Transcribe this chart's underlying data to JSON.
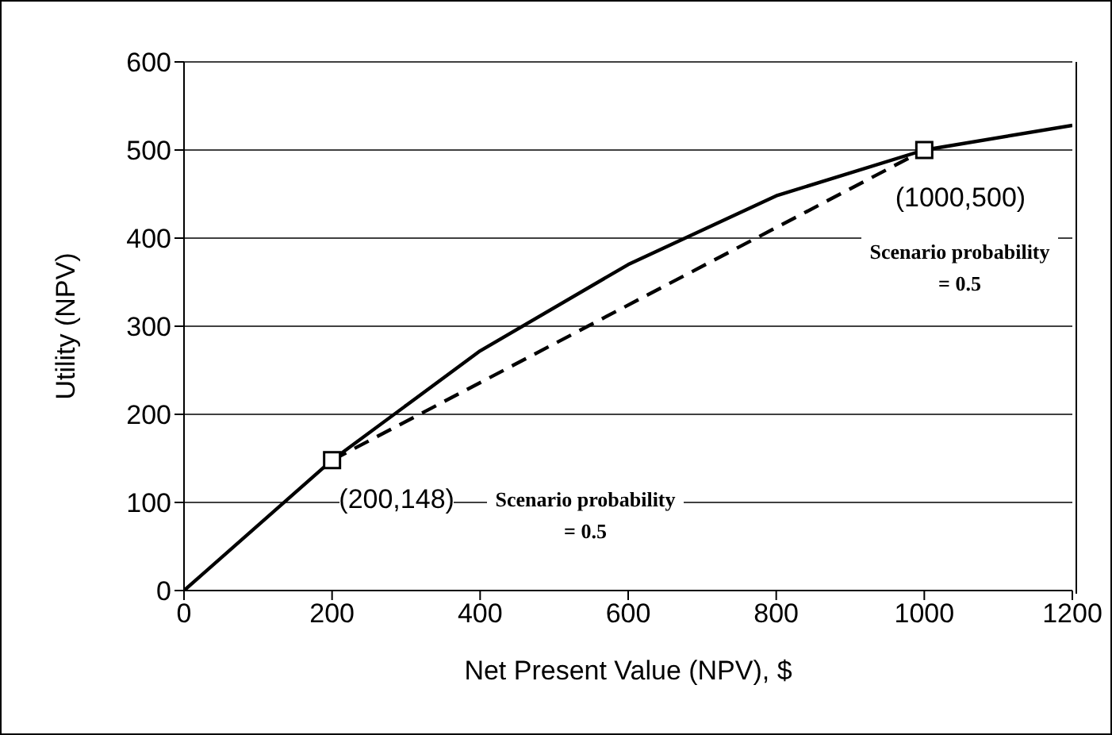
{
  "chart_data": {
    "type": "line",
    "xlabel": "Net Present Value (NPV), $",
    "ylabel": "Utility (NPV)",
    "xlim": [
      0,
      1200
    ],
    "xticks": [
      0,
      200,
      400,
      600,
      800,
      1000,
      1200
    ],
    "ylim": [
      0,
      600
    ],
    "yticks": [
      0,
      100,
      200,
      300,
      400,
      500,
      600
    ],
    "grid": "y",
    "series": [
      {
        "color": "#000000",
        "line_style": "solid",
        "marker": "none",
        "x": [
          0,
          200,
          400,
          600,
          800,
          1000,
          1200
        ],
        "values": [
          0,
          148,
          272,
          370,
          448,
          500,
          528
        ]
      },
      {
        "color": "#000000",
        "line_style": "dashed",
        "marker": "none",
        "x": [
          200,
          1000
        ],
        "values": [
          148,
          500
        ]
      },
      {
        "type": "scatter",
        "color": "#000000",
        "marker": "square",
        "x": [
          200,
          1000
        ],
        "values": [
          148,
          500
        ]
      }
    ],
    "annotations": [
      {
        "text": "(200,148)",
        "x": 200,
        "y": 148
      },
      {
        "text": "(1000,500)",
        "x": 1000,
        "y": 500
      },
      "Scenario probability = 0.5",
      "Scenario probability = 0.5"
    ]
  }
}
